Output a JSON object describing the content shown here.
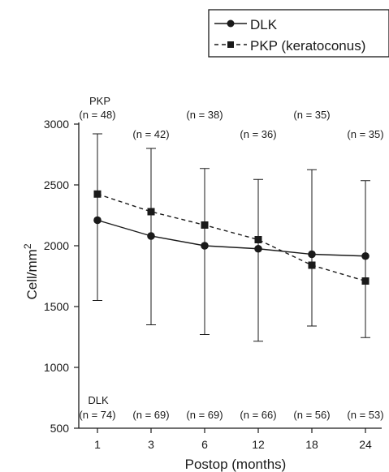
{
  "chart_data": {
    "type": "line",
    "xlabel": "Postop (months)",
    "ylabel_base": "Cell/mm",
    "ylabel_sup": "2",
    "ylim": [
      500,
      3000
    ],
    "yticks": [
      500,
      1000,
      1500,
      2000,
      2500,
      3000
    ],
    "categories": [
      "1",
      "3",
      "6",
      "12",
      "18",
      "24"
    ],
    "grid": false,
    "legend_position": "top-right",
    "series": [
      {
        "name": "DLK",
        "style": "solid",
        "marker": "circle",
        "values": [
          2210,
          2080,
          2000,
          1975,
          1930,
          1915
        ],
        "err_low": [
          1550,
          1350,
          1270,
          1215,
          1340,
          1245
        ],
        "err_high": [
          2920,
          2800,
          2635,
          2545,
          2625,
          2535
        ],
        "group_label": "DLK",
        "n_labels": [
          "(n = 74)",
          "(n = 69)",
          "(n = 69)",
          "(n = 66)",
          "(n = 56)",
          "(n = 53)"
        ]
      },
      {
        "name": "PKP (keratoconus)",
        "style": "dashed",
        "marker": "square",
        "values": [
          2425,
          2280,
          2170,
          2050,
          1840,
          1710
        ],
        "group_label": "PKP",
        "n_labels": [
          "(n = 48)",
          "(n = 42)",
          "(n =  38)",
          "(n = 36)",
          "(n = 35)",
          "(n = 35)"
        ]
      }
    ]
  }
}
